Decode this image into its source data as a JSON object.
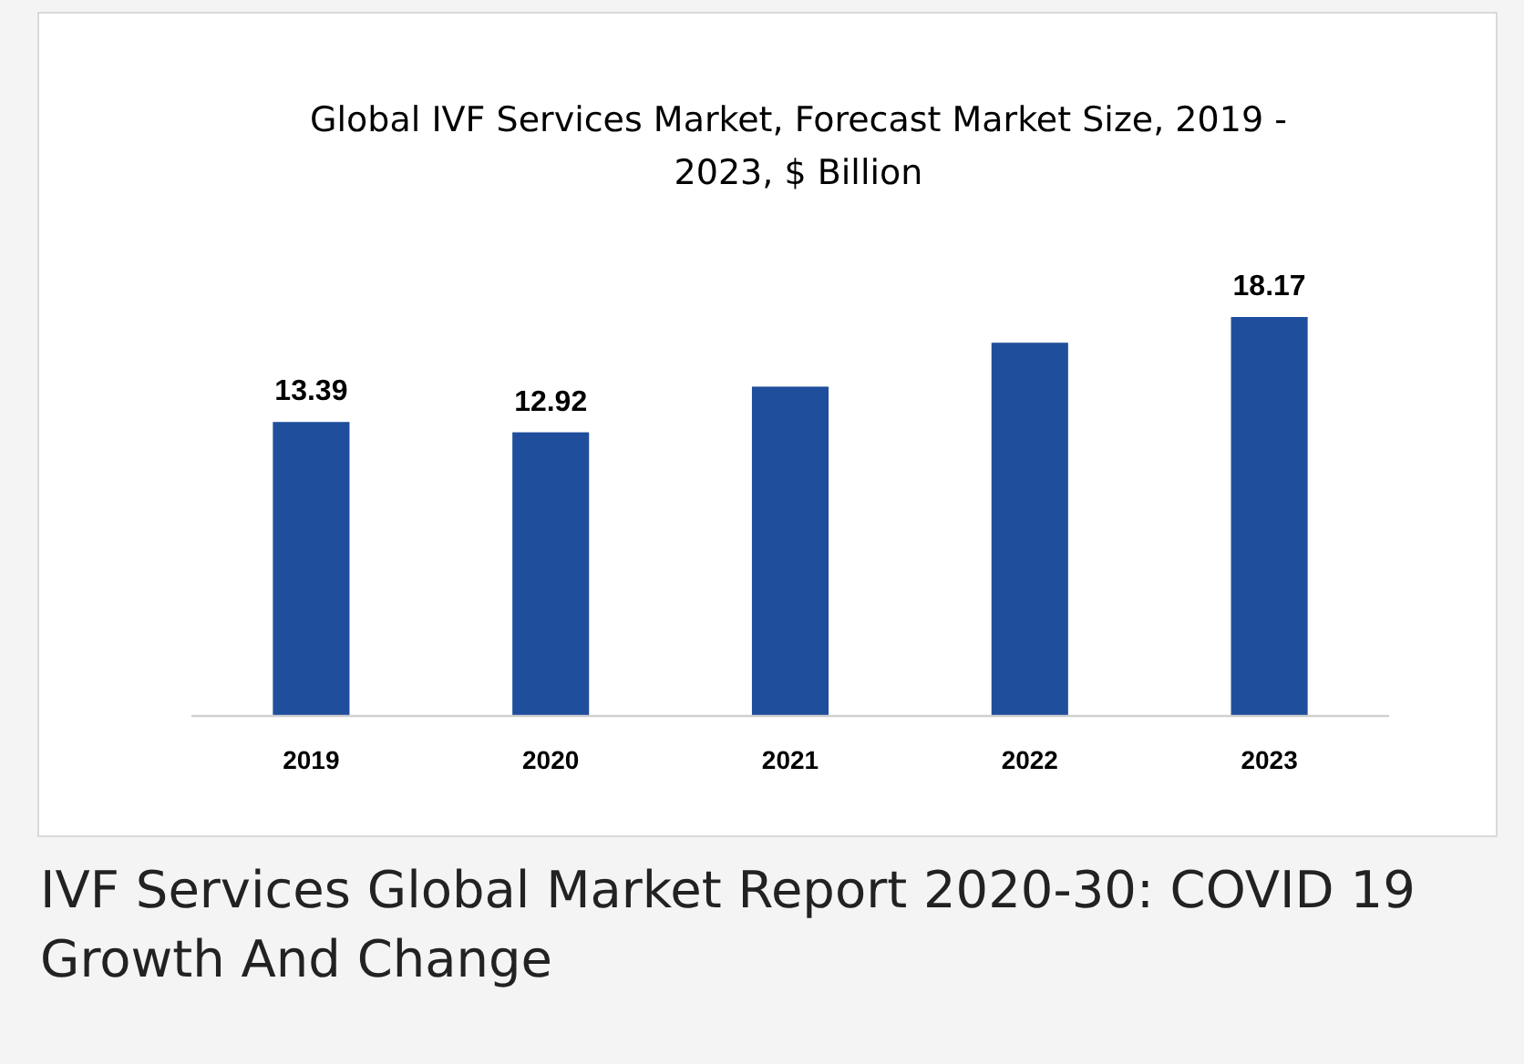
{
  "chart_data": {
    "type": "bar",
    "title": "Global IVF Services Market, Forecast Market Size, 2019 - 2023, $ Billion",
    "categories": [
      "2019",
      "2020",
      "2021",
      "2022",
      "2023"
    ],
    "values": [
      13.39,
      12.92,
      15.0,
      17.0,
      18.17
    ],
    "value_labels": [
      "13.39",
      "12.92",
      null,
      null,
      "18.17"
    ],
    "color": "#1f4e9c",
    "tick_labels": "x",
    "annotations": [
      "IVF Services Global Market Report 2020-30: COVID 19 Growth And Change"
    ]
  }
}
